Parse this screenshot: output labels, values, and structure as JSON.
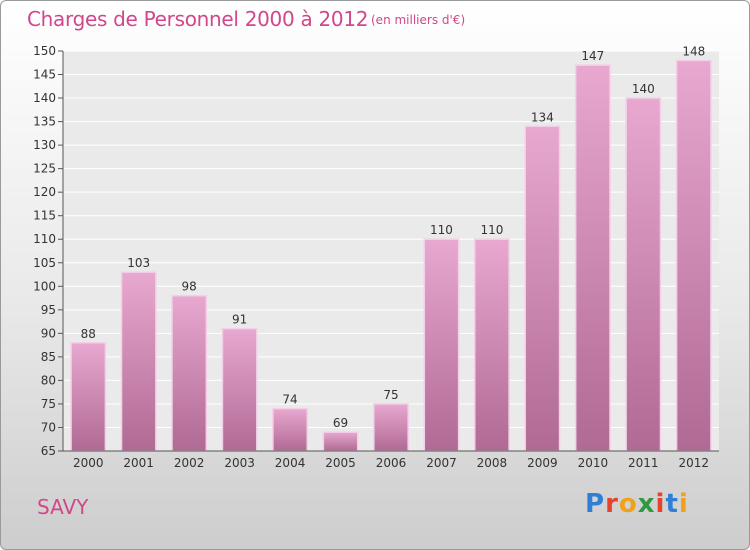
{
  "header": {
    "title": "Charges de Personnel 2000 à 2012",
    "unit": "(en milliers d'€)"
  },
  "footer": {
    "commune": "SAVY",
    "logo_letters": [
      "P",
      "r",
      "o",
      "x",
      "i",
      "t",
      "i"
    ]
  },
  "colors": {
    "accent": "#d1478a",
    "bar_top": "#e8a8d0",
    "bar_bottom": "#b06a94",
    "logo": [
      "#2f7fd6",
      "#e5442b",
      "#f0a21c",
      "#2f9a3f",
      "#e5442b",
      "#2f7fd6",
      "#f0a21c"
    ]
  },
  "chart_data": {
    "type": "bar",
    "categories": [
      "2000",
      "2001",
      "2002",
      "2003",
      "2004",
      "2005",
      "2006",
      "2007",
      "2008",
      "2009",
      "2010",
      "2011",
      "2012"
    ],
    "values": [
      88,
      103,
      98,
      91,
      74,
      69,
      75,
      110,
      110,
      134,
      147,
      140,
      148
    ],
    "ylim": [
      65,
      150
    ],
    "yticks": [
      65,
      70,
      75,
      80,
      85,
      90,
      95,
      100,
      105,
      110,
      115,
      120,
      125,
      130,
      135,
      140,
      145,
      150
    ],
    "grid": true,
    "legend": "none"
  }
}
